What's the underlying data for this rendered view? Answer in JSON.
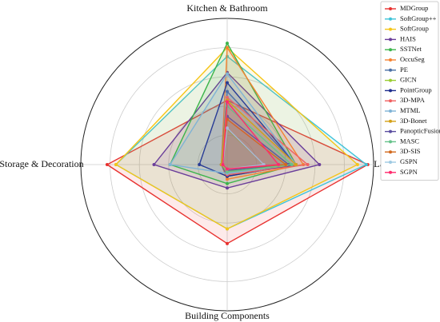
{
  "chart_data": {
    "type": "radar",
    "categories": [
      "Kitchen & Bathroom",
      "Large Furniture",
      "Building Components",
      "Storage & Decoration"
    ],
    "ylim": [
      0,
      100
    ],
    "yticks": [
      20,
      40,
      60,
      80,
      100
    ],
    "grid": true,
    "legend": "upper right",
    "series": [
      {
        "name": "MDGroup",
        "color": "#e8312f",
        "values": [
          44,
          96,
          54,
          82
        ]
      },
      {
        "name": "SoftGroup++",
        "color": "#3ec3d8",
        "values": [
          74,
          95,
          44,
          76
        ]
      },
      {
        "name": "SoftGroup",
        "color": "#f5c518",
        "values": [
          80,
          89,
          44,
          76
        ]
      },
      {
        "name": "HAIS",
        "color": "#6a3d9a",
        "values": [
          63,
          63,
          16,
          50
        ]
      },
      {
        "name": "SSTNet",
        "color": "#3cb44b",
        "values": [
          83,
          47,
          13,
          39
        ]
      },
      {
        "name": "OccuSeg",
        "color": "#f58231",
        "values": [
          80,
          52,
          10,
          4
        ]
      },
      {
        "name": "PE",
        "color": "#4a6fa5",
        "values": [
          50,
          47,
          8,
          4
        ]
      },
      {
        "name": "GICN",
        "color": "#9acd32",
        "values": [
          24,
          25,
          5,
          3
        ]
      },
      {
        "name": "PointGroup",
        "color": "#1f2f8f",
        "values": [
          56,
          47,
          8,
          19
        ]
      },
      {
        "name": "3D-MPA",
        "color": "#f06060",
        "values": [
          46,
          55,
          7,
          3
        ]
      },
      {
        "name": "MTML",
        "color": "#7fb3d5",
        "values": [
          62,
          47,
          6,
          39
        ]
      },
      {
        "name": "3D-Bonet",
        "color": "#d4a017",
        "values": [
          44,
          47,
          5,
          4
        ]
      },
      {
        "name": "PanopticFusion",
        "color": "#5b4ea0",
        "values": [
          33,
          42,
          4,
          3
        ]
      },
      {
        "name": "MASC",
        "color": "#66c28a",
        "values": [
          40,
          44,
          5,
          3
        ]
      },
      {
        "name": "3D-SIS",
        "color": "#d2691e",
        "values": [
          31,
          40,
          3,
          3
        ]
      },
      {
        "name": "GSPN",
        "color": "#9ec9e2",
        "values": [
          25,
          25,
          3,
          3
        ]
      },
      {
        "name": "SGPN",
        "color": "#ff2a6d",
        "values": [
          43,
          35,
          3,
          3
        ]
      }
    ]
  }
}
